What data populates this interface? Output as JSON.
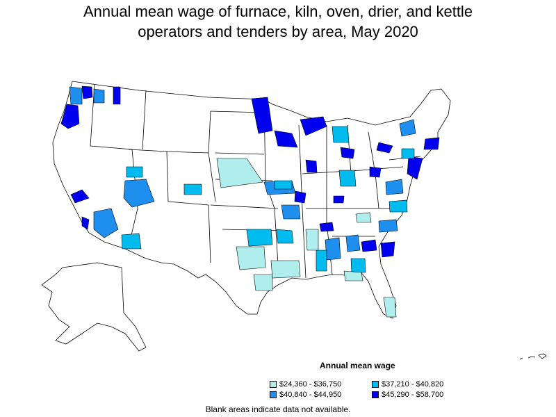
{
  "title_line1": "Annual mean wage of furnace, kiln, oven, drier, and kettle",
  "title_line2": "operators and tenders by area, May 2020",
  "legend": {
    "title": "Annual mean wage",
    "items": [
      {
        "label": "$24,360 - $36,750",
        "color": "#b0eeee"
      },
      {
        "label": "$37,210 - $40,820",
        "color": "#00bbee"
      },
      {
        "label": "$40,840 - $44,950",
        "color": "#1e8fee"
      },
      {
        "label": "$45,290 - $58,700",
        "color": "#0000ee"
      }
    ]
  },
  "note": "Blank areas indicate data not available.",
  "colors": {
    "border": "#000000",
    "no_data": "#ffffff"
  }
}
